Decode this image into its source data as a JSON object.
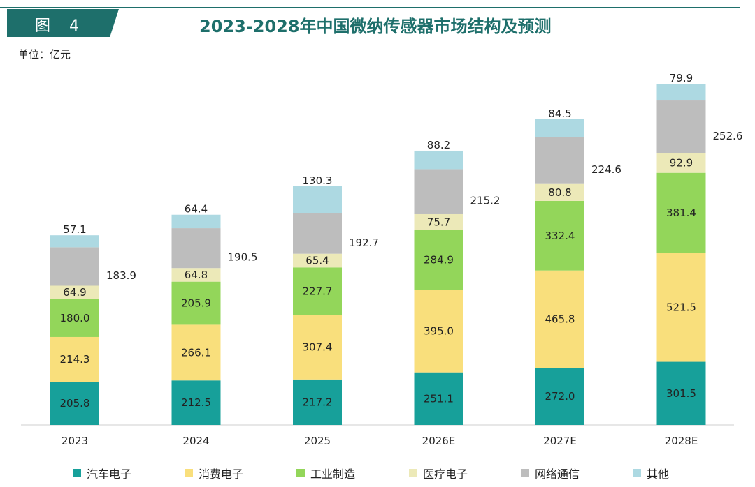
{
  "header": {
    "figure_label": "图 4",
    "title": "2023-2028年中国微纳传感器市场结构及预测",
    "unit": "单位：亿元"
  },
  "chart_data": {
    "type": "bar",
    "stacked": true,
    "categories": [
      "2023",
      "2024",
      "2025",
      "2026E",
      "2027E",
      "2028E"
    ],
    "series": [
      {
        "name": "汽车电子",
        "color": "#17a09a",
        "values": [
          205.8,
          212.5,
          217.2,
          251.1,
          272.0,
          301.5
        ]
      },
      {
        "name": "消费电子",
        "color": "#f9df7c",
        "values": [
          214.3,
          266.1,
          307.4,
          395.0,
          465.8,
          521.5
        ]
      },
      {
        "name": "工业制造",
        "color": "#93d65a",
        "values": [
          180.0,
          205.9,
          227.7,
          284.9,
          332.4,
          381.4
        ]
      },
      {
        "name": "医疗电子",
        "color": "#ece9b8",
        "values": [
          64.9,
          64.8,
          65.4,
          75.7,
          80.8,
          92.9
        ]
      },
      {
        "name": "网络通信",
        "color": "#bdbdbd",
        "values": [
          183.9,
          190.5,
          192.7,
          215.2,
          224.6,
          252.6
        ]
      },
      {
        "name": "其他",
        "color": "#add9e2",
        "values": [
          57.1,
          64.4,
          130.3,
          88.2,
          84.5,
          79.9
        ]
      }
    ],
    "ylim": [
      0,
      1700
    ],
    "grid": false,
    "legend_position": "bottom",
    "xlabel": "",
    "ylabel": ""
  }
}
